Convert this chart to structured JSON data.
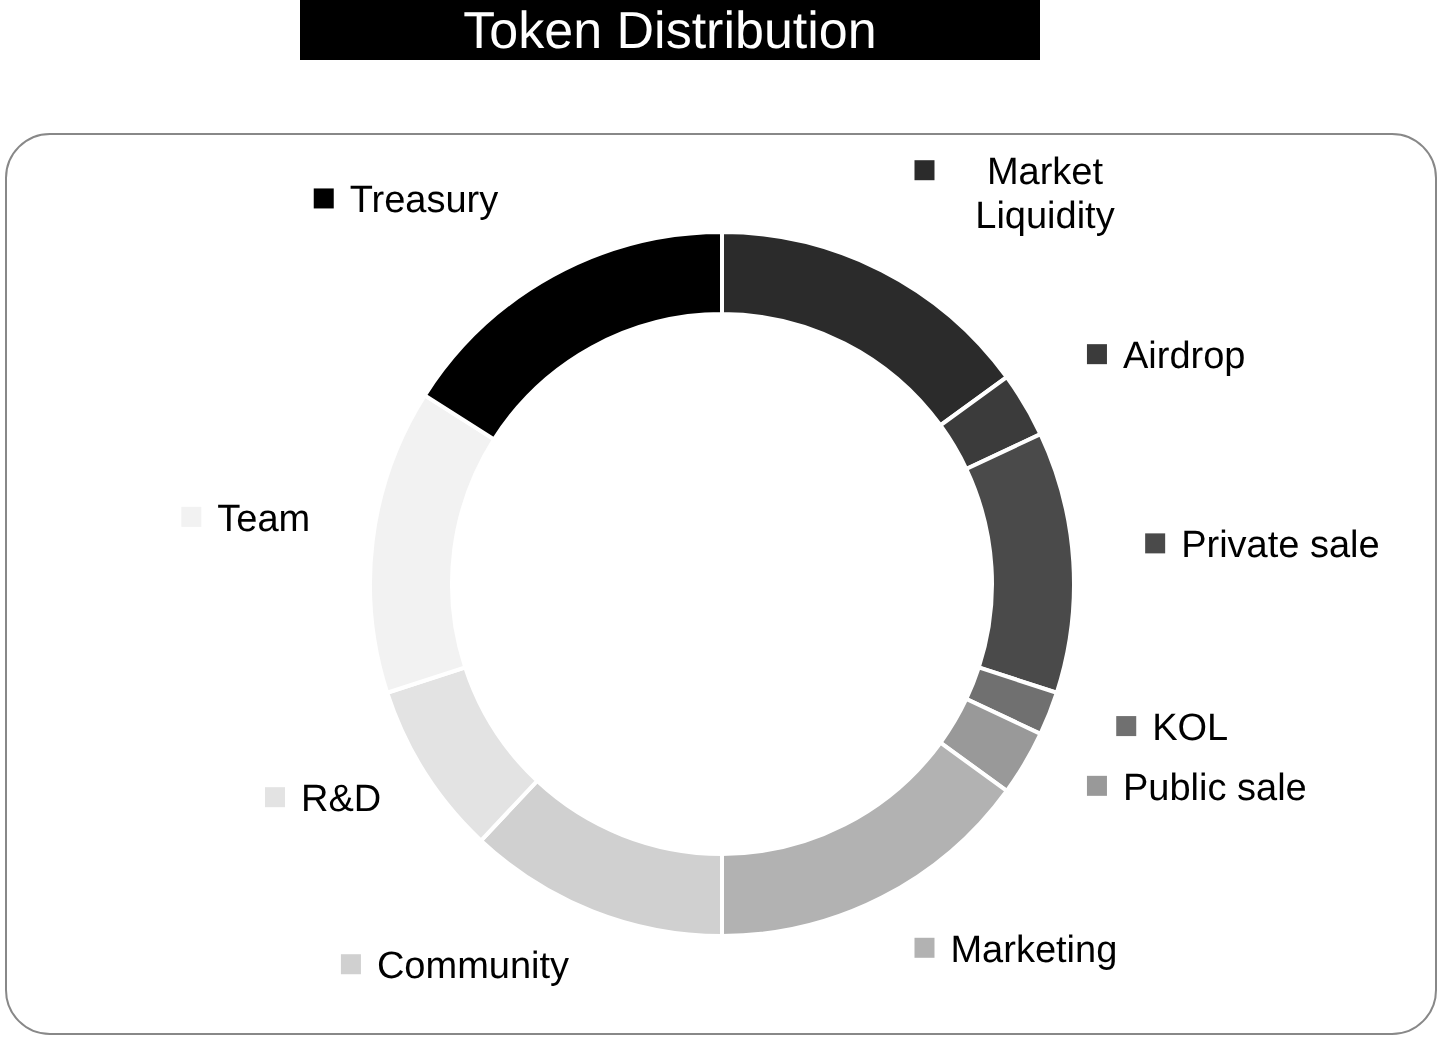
{
  "chart_data": {
    "type": "donut",
    "legend": "right",
    "title": "Token Distribution",
    "categories": [
      "Market Liquidity",
      "Airdrop",
      "Private sale",
      "KOL",
      "Public sale",
      "Marketing",
      "Community",
      "R&D",
      "Team",
      "Treasury"
    ],
    "values": [
      15,
      3,
      12,
      2,
      3,
      15,
      12,
      8,
      14,
      16
    ],
    "colors": [
      "#2b2b2b",
      "#3b3b3b",
      "#4a4a4a",
      "#707070",
      "#999999",
      "#b2b2b2",
      "#d0d0d0",
      "#e3e3e3",
      "#f2f2f2",
      "#000000"
    ]
  }
}
